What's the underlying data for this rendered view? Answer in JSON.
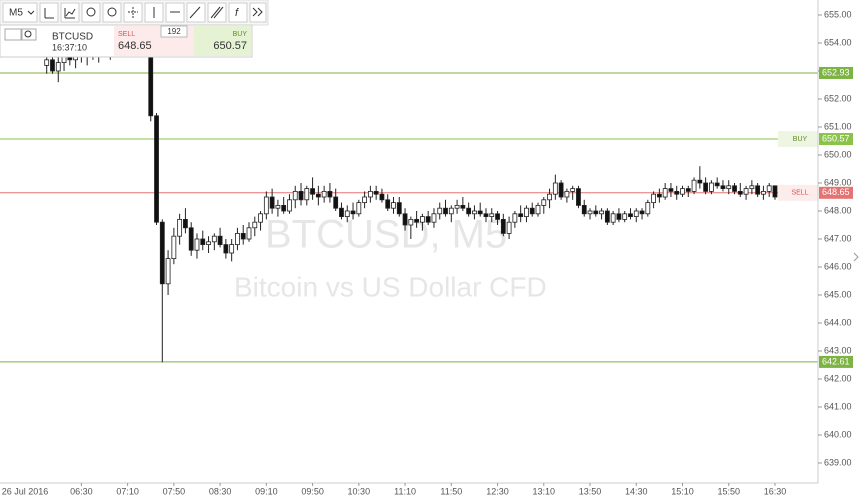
{
  "chart_data": {
    "type": "candlestick",
    "symbol": "BTCUSD",
    "timeframe": "M5",
    "clock": "16:37:10",
    "watermark_title": "BTCUSD, M5",
    "watermark_subtitle": "Bitcoin vs US Dollar CFD",
    "date_label": "26 Jul 2016",
    "function_icon": "f",
    "quote": {
      "sell_label": "SELL",
      "sell": 648.65,
      "buy_label": "BUY",
      "buy": 650.57,
      "spread": 192
    },
    "levels": [
      {
        "value": 652.93,
        "color": "#7cb342"
      },
      {
        "value": 642.61,
        "color": "#7cb342"
      }
    ],
    "ylim": [
      639,
      655
    ],
    "yticks": [
      {
        "value": 655,
        "label": "655.00"
      },
      {
        "value": 654,
        "label": "654.00"
      },
      {
        "value": 653,
        "label": "653.00"
      },
      {
        "value": 652,
        "label": "652.00"
      },
      {
        "value": 651,
        "label": "651.00"
      },
      {
        "value": 650,
        "label": "650.00"
      },
      {
        "value": 649,
        "label": "649.00"
      },
      {
        "value": 648,
        "label": "648.00"
      },
      {
        "value": 647,
        "label": "647.00"
      },
      {
        "value": 646,
        "label": "646.00"
      },
      {
        "value": 645,
        "label": "645.00"
      },
      {
        "value": 644,
        "label": "644.00"
      },
      {
        "value": 643,
        "label": "643.00"
      },
      {
        "value": 642,
        "label": "642.00"
      },
      {
        "value": 641,
        "label": "641.00"
      },
      {
        "value": 640,
        "label": "640.00"
      },
      {
        "value": 639,
        "label": "639.00"
      }
    ],
    "categories": [
      null,
      null,
      null,
      null,
      null,
      null,
      "06:30",
      null,
      null,
      null,
      null,
      null,
      null,
      null,
      "07:10",
      null,
      null,
      null,
      null,
      null,
      null,
      null,
      "07:50",
      null,
      null,
      null,
      null,
      null,
      null,
      null,
      "08:30",
      null,
      null,
      null,
      null,
      null,
      null,
      null,
      "09:10",
      null,
      null,
      null,
      null,
      null,
      null,
      null,
      "09:50",
      null,
      null,
      null,
      null,
      null,
      null,
      null,
      "10:30",
      null,
      null,
      null,
      null,
      null,
      null,
      null,
      "11:10",
      null,
      null,
      null,
      null,
      null,
      null,
      null,
      "11:50",
      null,
      null,
      null,
      null,
      null,
      null,
      null,
      "12:30",
      null,
      null,
      null,
      null,
      null,
      null,
      null,
      "13:10",
      null,
      null,
      null,
      null,
      null,
      null,
      null,
      "13:50",
      null,
      null,
      null,
      null,
      null,
      null,
      null,
      "14:30",
      null,
      null,
      null,
      null,
      null,
      null,
      null,
      "15:10",
      null,
      null,
      null,
      null,
      null,
      null,
      null,
      "15:50",
      null,
      null,
      null,
      null,
      null,
      null,
      null,
      "16:30"
    ],
    "ohlc": [
      [
        653.2,
        653.6,
        652.9,
        653.4
      ],
      [
        653.4,
        653.6,
        652.9,
        653.0
      ],
      [
        653.0,
        653.5,
        652.6,
        653.3
      ],
      [
        653.3,
        653.7,
        653.0,
        653.5
      ],
      [
        653.5,
        653.9,
        653.2,
        653.4
      ],
      [
        653.4,
        653.8,
        653.1,
        653.6
      ],
      [
        653.6,
        654.0,
        653.3,
        653.5
      ],
      [
        653.5,
        653.9,
        653.2,
        653.7
      ],
      [
        653.7,
        654.1,
        653.4,
        653.6
      ],
      [
        653.6,
        654.0,
        653.3,
        653.8
      ],
      [
        653.8,
        654.2,
        653.5,
        653.7
      ],
      [
        653.7,
        654.1,
        653.4,
        653.9
      ],
      [
        653.9,
        654.3,
        653.6,
        653.8
      ],
      [
        653.8,
        654.2,
        653.5,
        654.0
      ],
      [
        654.0,
        654.4,
        653.7,
        653.9
      ],
      [
        653.9,
        654.3,
        653.6,
        654.1
      ],
      [
        654.1,
        654.5,
        653.8,
        654.0
      ],
      [
        654.0,
        654.4,
        653.6,
        653.7
      ],
      [
        653.7,
        653.9,
        651.2,
        651.4
      ],
      [
        651.4,
        651.5,
        647.5,
        647.6
      ],
      [
        647.6,
        647.7,
        642.6,
        645.4
      ],
      [
        645.4,
        646.6,
        645.0,
        646.3
      ],
      [
        646.3,
        647.4,
        646.1,
        647.1
      ],
      [
        647.1,
        647.9,
        646.8,
        647.7
      ],
      [
        647.7,
        648.1,
        647.2,
        647.4
      ],
      [
        647.4,
        647.6,
        646.4,
        646.6
      ],
      [
        646.6,
        647.2,
        646.3,
        647.0
      ],
      [
        647.0,
        647.3,
        646.6,
        646.8
      ],
      [
        646.8,
        647.1,
        646.5,
        646.9
      ],
      [
        646.9,
        647.2,
        646.6,
        647.1
      ],
      [
        647.1,
        647.4,
        646.7,
        646.8
      ],
      [
        646.8,
        647.0,
        646.3,
        646.5
      ],
      [
        646.5,
        647.0,
        646.2,
        646.8
      ],
      [
        646.8,
        647.4,
        646.6,
        647.2
      ],
      [
        647.2,
        647.5,
        646.8,
        647.0
      ],
      [
        647.0,
        647.6,
        646.9,
        647.4
      ],
      [
        647.4,
        647.8,
        647.1,
        647.6
      ],
      [
        647.6,
        648.0,
        647.3,
        647.9
      ],
      [
        647.9,
        648.7,
        647.7,
        648.5
      ],
      [
        648.5,
        648.8,
        647.9,
        648.1
      ],
      [
        648.1,
        648.4,
        647.8,
        648.2
      ],
      [
        648.2,
        648.5,
        647.9,
        648.0
      ],
      [
        648.0,
        648.6,
        647.9,
        648.4
      ],
      [
        648.4,
        648.9,
        648.1,
        648.7
      ],
      [
        648.7,
        649.0,
        648.2,
        648.4
      ],
      [
        648.4,
        648.9,
        648.2,
        648.8
      ],
      [
        648.8,
        649.2,
        648.4,
        648.6
      ],
      [
        648.6,
        648.9,
        648.2,
        648.5
      ],
      [
        648.5,
        648.9,
        648.3,
        648.7
      ],
      [
        648.7,
        649.0,
        648.3,
        648.5
      ],
      [
        648.5,
        648.8,
        648.0,
        648.1
      ],
      [
        648.1,
        648.3,
        647.7,
        647.8
      ],
      [
        647.8,
        648.2,
        647.6,
        648.0
      ],
      [
        648.0,
        648.3,
        647.7,
        647.9
      ],
      [
        647.9,
        648.4,
        647.8,
        648.3
      ],
      [
        648.3,
        648.7,
        648.1,
        648.5
      ],
      [
        648.5,
        648.9,
        648.3,
        648.7
      ],
      [
        648.7,
        648.9,
        648.4,
        648.6
      ],
      [
        648.6,
        648.8,
        648.3,
        648.4
      ],
      [
        648.4,
        648.6,
        648.0,
        648.1
      ],
      [
        648.1,
        648.5,
        647.9,
        648.3
      ],
      [
        648.3,
        648.5,
        647.8,
        647.9
      ],
      [
        647.9,
        648.1,
        647.3,
        647.5
      ],
      [
        647.5,
        647.8,
        647.0,
        647.7
      ],
      [
        647.7,
        648.0,
        647.4,
        647.6
      ],
      [
        647.6,
        647.9,
        647.3,
        647.8
      ],
      [
        647.8,
        648.0,
        647.5,
        647.6
      ],
      [
        647.6,
        648.1,
        647.4,
        647.9
      ],
      [
        647.9,
        648.3,
        647.7,
        648.1
      ],
      [
        648.1,
        648.4,
        647.8,
        647.9
      ],
      [
        647.9,
        648.2,
        647.6,
        648.1
      ],
      [
        648.1,
        648.4,
        647.9,
        648.2
      ],
      [
        648.2,
        648.5,
        648.0,
        648.1
      ],
      [
        648.1,
        648.3,
        647.8,
        647.9
      ],
      [
        647.9,
        648.2,
        647.7,
        648.0
      ],
      [
        648.0,
        648.3,
        647.8,
        647.9
      ],
      [
        647.9,
        648.1,
        647.6,
        647.8
      ],
      [
        647.8,
        648.1,
        647.6,
        647.9
      ],
      [
        647.9,
        648.0,
        647.5,
        647.7
      ],
      [
        647.7,
        647.9,
        647.1,
        647.2
      ],
      [
        647.2,
        647.8,
        647.0,
        647.6
      ],
      [
        647.6,
        648.0,
        647.4,
        647.9
      ],
      [
        647.9,
        648.2,
        647.6,
        647.8
      ],
      [
        647.8,
        648.2,
        647.6,
        648.1
      ],
      [
        648.1,
        648.3,
        647.8,
        647.9
      ],
      [
        647.9,
        648.3,
        647.8,
        648.2
      ],
      [
        648.2,
        648.5,
        647.9,
        648.4
      ],
      [
        648.4,
        648.8,
        648.1,
        648.6
      ],
      [
        648.6,
        649.3,
        648.4,
        649.0
      ],
      [
        649.0,
        649.1,
        648.4,
        648.5
      ],
      [
        648.5,
        648.8,
        648.3,
        648.7
      ],
      [
        648.7,
        648.9,
        648.4,
        648.8
      ],
      [
        648.8,
        648.9,
        648.1,
        648.2
      ],
      [
        648.2,
        648.4,
        647.8,
        647.9
      ],
      [
        647.9,
        648.1,
        647.7,
        648.0
      ],
      [
        648.0,
        648.2,
        647.8,
        647.9
      ],
      [
        647.9,
        648.1,
        647.7,
        648.0
      ],
      [
        648.0,
        648.1,
        647.5,
        647.6
      ],
      [
        647.6,
        648.0,
        647.5,
        647.9
      ],
      [
        647.9,
        648.1,
        647.6,
        647.7
      ],
      [
        647.7,
        648.0,
        647.6,
        647.9
      ],
      [
        647.9,
        648.1,
        647.7,
        647.8
      ],
      [
        647.8,
        648.1,
        647.6,
        648.0
      ],
      [
        648.0,
        648.1,
        647.7,
        647.9
      ],
      [
        647.9,
        648.4,
        647.8,
        648.3
      ],
      [
        648.3,
        648.7,
        648.1,
        648.6
      ],
      [
        648.6,
        648.8,
        648.3,
        648.5
      ],
      [
        648.5,
        649.0,
        648.4,
        648.8
      ],
      [
        648.8,
        649.0,
        648.5,
        648.7
      ],
      [
        648.7,
        648.9,
        648.4,
        648.6
      ],
      [
        648.6,
        648.9,
        648.5,
        648.8
      ],
      [
        648.8,
        648.9,
        648.5,
        648.7
      ],
      [
        648.7,
        649.2,
        648.6,
        649.1
      ],
      [
        649.1,
        649.6,
        648.8,
        649.0
      ],
      [
        649.0,
        649.2,
        648.6,
        648.7
      ],
      [
        648.7,
        649.1,
        648.6,
        649.0
      ],
      [
        649.0,
        649.2,
        648.8,
        648.9
      ],
      [
        648.9,
        649.1,
        648.7,
        648.8
      ],
      [
        648.8,
        649.1,
        648.6,
        648.9
      ],
      [
        648.9,
        649.0,
        648.6,
        648.7
      ],
      [
        648.7,
        649.0,
        648.5,
        648.6
      ],
      [
        648.6,
        648.9,
        648.4,
        648.8
      ],
      [
        648.8,
        649.1,
        648.6,
        648.9
      ],
      [
        648.9,
        649.0,
        648.5,
        648.6
      ],
      [
        648.6,
        648.9,
        648.4,
        648.7
      ],
      [
        648.7,
        649.0,
        648.5,
        648.9
      ],
      [
        648.9,
        648.9,
        648.4,
        648.5
      ]
    ],
    "up_color": "#ffffff",
    "down_color": "#111111",
    "sell_color": "#e57373",
    "buy_color": "#8bc34a"
  }
}
